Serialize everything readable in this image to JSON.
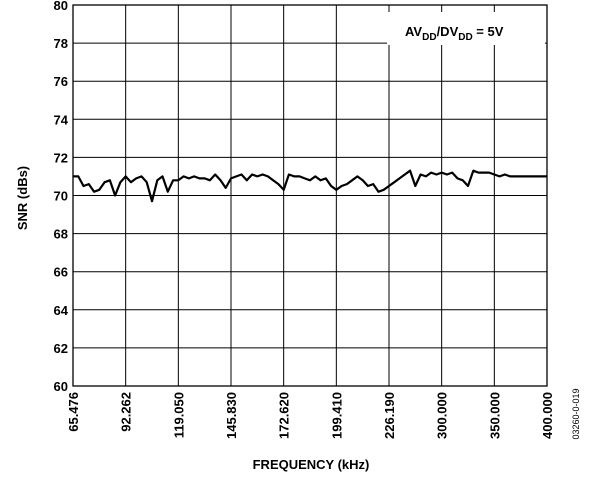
{
  "chart_data": {
    "type": "line",
    "title": "",
    "xlabel": "FREQUENCY (kHz)",
    "ylabel": "SNR (dBs)",
    "x_tick_labels": [
      "65.476",
      "92.262",
      "119.050",
      "145.830",
      "172.620",
      "199.410",
      "226.190",
      "300.000",
      "350.000",
      "400.000"
    ],
    "y_ticks": [
      60,
      62,
      64,
      66,
      68,
      70,
      72,
      74,
      76,
      78,
      80
    ],
    "ylim": [
      60,
      80
    ],
    "grid": true,
    "annotation": {
      "prefix": "AV",
      "sub1": "DD",
      "mid": "/DV",
      "sub2": "DD",
      "suffix": " = 5V",
      "position": "top-right"
    },
    "figure_id": "03260-0-019",
    "series": [
      {
        "color": "#000000",
        "x_index": [
          0.0,
          0.1,
          0.2,
          0.3,
          0.4,
          0.5,
          0.6,
          0.7,
          0.8,
          0.9,
          1.0,
          1.1,
          1.2,
          1.3,
          1.4,
          1.5,
          1.6,
          1.7,
          1.8,
          1.9,
          2.0,
          2.1,
          2.2,
          2.3,
          2.4,
          2.5,
          2.6,
          2.7,
          2.8,
          2.9,
          3.0,
          3.1,
          3.2,
          3.3,
          3.4,
          3.5,
          3.6,
          3.7,
          3.8,
          3.9,
          4.0,
          4.1,
          4.2,
          4.3,
          4.4,
          4.5,
          4.6,
          4.7,
          4.8,
          4.9,
          5.0,
          5.1,
          5.2,
          5.3,
          5.4,
          5.5,
          5.6,
          5.7,
          5.8,
          5.9,
          6.0,
          6.1,
          6.2,
          6.3,
          6.4,
          6.5,
          6.6,
          6.7,
          6.8,
          6.9,
          7.0,
          7.1,
          7.2,
          7.3,
          7.4,
          7.5,
          7.6,
          7.7,
          7.8,
          7.9,
          8.0,
          8.1,
          8.2,
          8.3,
          8.4,
          8.5,
          8.6,
          8.7,
          8.8,
          8.9,
          9.0
        ],
        "values": [
          71.0,
          71.0,
          70.5,
          70.6,
          70.2,
          70.3,
          70.7,
          70.8,
          70.0,
          70.7,
          71.0,
          70.7,
          70.9,
          71.0,
          70.7,
          69.7,
          70.8,
          71.0,
          70.2,
          70.8,
          70.8,
          71.0,
          70.9,
          71.0,
          70.9,
          70.9,
          70.8,
          71.1,
          70.8,
          70.4,
          70.9,
          71.0,
          71.1,
          70.8,
          71.1,
          71.0,
          71.1,
          71.0,
          70.8,
          70.6,
          70.3,
          71.1,
          71.0,
          71.0,
          70.9,
          70.8,
          71.0,
          70.8,
          70.9,
          70.5,
          70.3,
          70.5,
          70.6,
          70.8,
          71.0,
          70.8,
          70.5,
          70.6,
          70.2,
          70.3,
          70.5,
          70.7,
          70.9,
          71.1,
          71.3,
          70.5,
          71.1,
          71.0,
          71.2,
          71.1,
          71.2,
          71.1,
          71.2,
          70.9,
          70.8,
          70.5,
          71.3,
          71.2,
          71.2,
          71.2,
          71.1,
          71.0,
          71.1,
          71.0,
          71.0,
          71.0,
          71.0,
          71.0,
          71.0,
          71.0,
          71.0
        ]
      }
    ]
  }
}
